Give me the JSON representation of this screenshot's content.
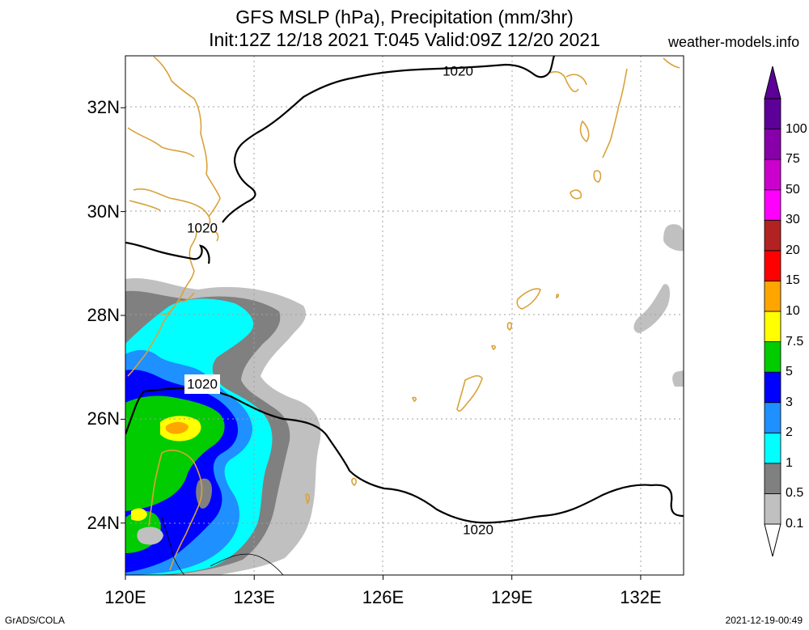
{
  "title": {
    "line1": "GFS MSLP (hPa), Precipitation (mm/3hr)",
    "line2": "Init:12Z 12/18 2021 T:045 Valid:09Z 12/20 2021"
  },
  "watermark": "weather-models.info",
  "footer": {
    "left": "GrADS/COLA",
    "right": "2021-12-19-00:49"
  },
  "map": {
    "lat_range": [
      23,
      33
    ],
    "lon_range": [
      120,
      133
    ],
    "lat_ticks": [
      {
        "value": 24,
        "label": "24N"
      },
      {
        "value": 26,
        "label": "26N"
      },
      {
        "value": 28,
        "label": "28N"
      },
      {
        "value": 30,
        "label": "30N"
      },
      {
        "value": 32,
        "label": "32N"
      }
    ],
    "lon_ticks": [
      {
        "value": 120,
        "label": "120E"
      },
      {
        "value": 123,
        "label": "123E"
      },
      {
        "value": 126,
        "label": "126E"
      },
      {
        "value": 129,
        "label": "129E"
      },
      {
        "value": 132,
        "label": "132E"
      }
    ],
    "coast_color": "#d9a23a",
    "isobar_color": "#000000",
    "isobar_labels": [
      "1020",
      "1020",
      "1020",
      "1020"
    ]
  },
  "colorbar": {
    "levels": [
      {
        "label": "0.1",
        "color": "#c0c0c0"
      },
      {
        "label": "0.5",
        "color": "#808080"
      },
      {
        "label": "1",
        "color": "#00ffff"
      },
      {
        "label": "2",
        "color": "#1e90ff"
      },
      {
        "label": "3",
        "color": "#0000ff"
      },
      {
        "label": "5",
        "color": "#00cc00"
      },
      {
        "label": "7.5",
        "color": "#ffff00"
      },
      {
        "label": "10",
        "color": "#ffa500"
      },
      {
        "label": "15",
        "color": "#ff0000"
      },
      {
        "label": "20",
        "color": "#b22222"
      },
      {
        "label": "30",
        "color": "#ff00ff"
      },
      {
        "label": "50",
        "color": "#cc00cc"
      },
      {
        "label": "75",
        "color": "#8800aa"
      },
      {
        "label": "100",
        "color": "#5c0099"
      }
    ]
  }
}
